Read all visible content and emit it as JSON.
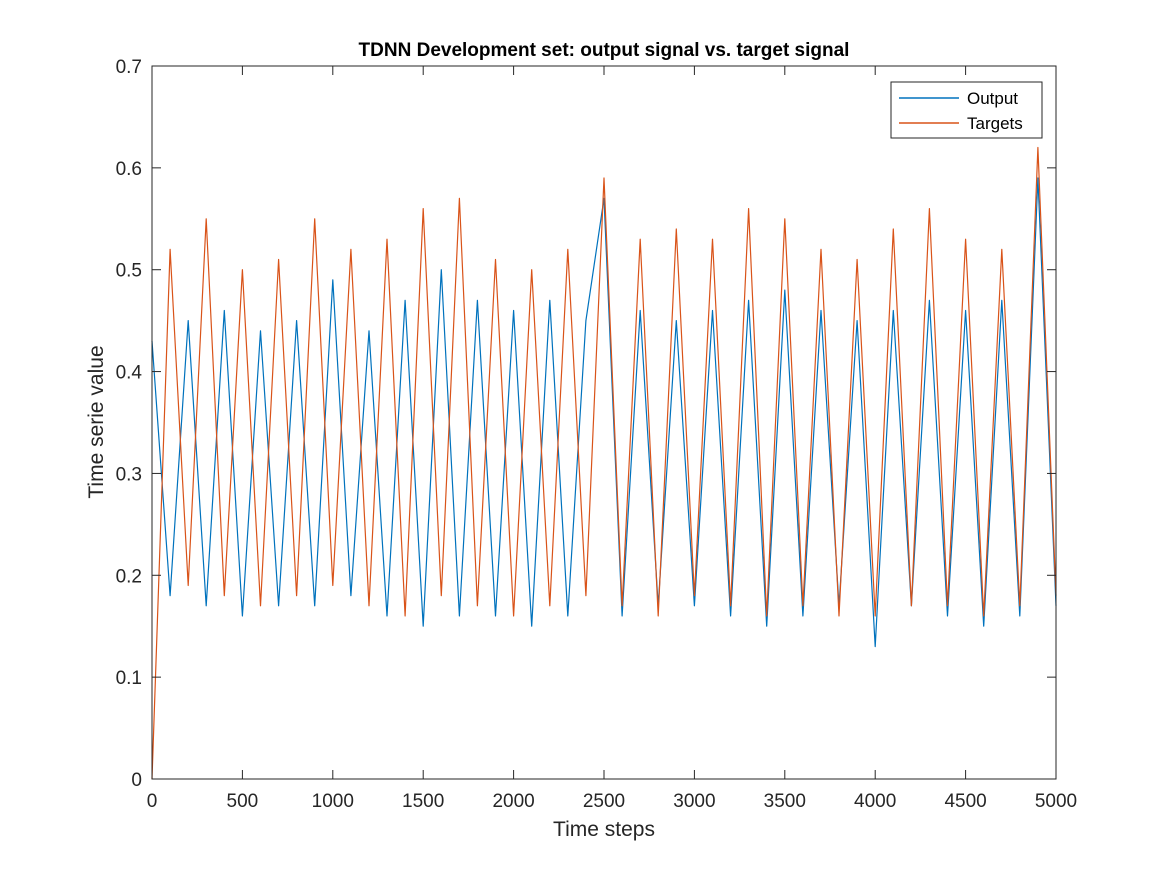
{
  "chart_data": {
    "type": "line",
    "title": "TDNN Development set: output signal vs. target signal",
    "xlabel": "Time steps",
    "ylabel": "Time serie value",
    "xlim": [
      0,
      5000
    ],
    "ylim": [
      0,
      0.7
    ],
    "xticks": [
      0,
      500,
      1000,
      1500,
      2000,
      2500,
      3000,
      3500,
      4000,
      4500,
      5000
    ],
    "yticks": [
      0,
      0.1,
      0.2,
      0.3,
      0.4,
      0.5,
      0.6,
      0.7
    ],
    "xtick_labels": [
      "0",
      "500",
      "1000",
      "1500",
      "2000",
      "2500",
      "3000",
      "3500",
      "4000",
      "4500",
      "5000"
    ],
    "ytick_labels": [
      "0",
      "0.1",
      "0.2",
      "0.3",
      "0.4",
      "0.5",
      "0.6",
      "0.7"
    ],
    "grid": false,
    "legend_position": "top-right",
    "x": [
      0,
      100,
      200,
      300,
      400,
      500,
      600,
      700,
      800,
      900,
      1000,
      1100,
      1200,
      1300,
      1400,
      1500,
      1600,
      1700,
      1800,
      1900,
      2000,
      2100,
      2200,
      2300,
      2400,
      2500,
      2600,
      2700,
      2800,
      2900,
      3000,
      3100,
      3200,
      3300,
      3400,
      3500,
      3600,
      3700,
      3800,
      3900,
      4000,
      4100,
      4200,
      4300,
      4400,
      4500,
      4600,
      4700,
      4800,
      4900,
      5000
    ],
    "series": [
      {
        "name": "Output",
        "color": "#0072BD",
        "values": [
          0.43,
          0.18,
          0.45,
          0.17,
          0.46,
          0.16,
          0.44,
          0.17,
          0.45,
          0.17,
          0.49,
          0.18,
          0.44,
          0.16,
          0.47,
          0.15,
          0.5,
          0.16,
          0.47,
          0.16,
          0.46,
          0.15,
          0.47,
          0.16,
          0.45,
          0.57,
          0.16,
          0.46,
          0.17,
          0.45,
          0.17,
          0.46,
          0.16,
          0.47,
          0.15,
          0.48,
          0.16,
          0.46,
          0.17,
          0.45,
          0.13,
          0.46,
          0.17,
          0.47,
          0.16,
          0.46,
          0.15,
          0.47,
          0.16,
          0.59,
          0.17
        ]
      },
      {
        "name": "Targets",
        "color": "#D95319",
        "values": [
          0.0,
          0.52,
          0.19,
          0.55,
          0.18,
          0.5,
          0.17,
          0.51,
          0.18,
          0.55,
          0.19,
          0.52,
          0.17,
          0.53,
          0.16,
          0.56,
          0.18,
          0.57,
          0.17,
          0.51,
          0.16,
          0.5,
          0.17,
          0.52,
          0.18,
          0.59,
          0.17,
          0.53,
          0.16,
          0.54,
          0.18,
          0.53,
          0.17,
          0.56,
          0.16,
          0.55,
          0.17,
          0.52,
          0.16,
          0.51,
          0.16,
          0.54,
          0.17,
          0.56,
          0.17,
          0.53,
          0.16,
          0.52,
          0.17,
          0.62,
          0.18
        ]
      }
    ]
  }
}
